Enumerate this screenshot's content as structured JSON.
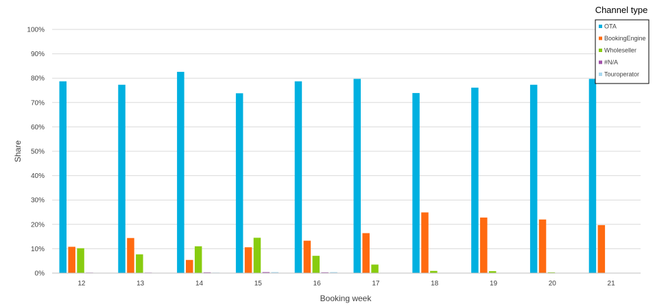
{
  "chart_data": {
    "type": "bar",
    "title": "",
    "xlabel": "Booking week",
    "ylabel": "Share",
    "ylim": [
      0,
      1
    ],
    "yticks": [
      "0%",
      "10%",
      "20%",
      "30%",
      "40%",
      "50%",
      "60%",
      "70%",
      "80%",
      "90%",
      "100%"
    ],
    "grid": true,
    "legend_position": "top-right",
    "legend_title": "Channel type",
    "categories": [
      "12",
      "13",
      "14",
      "15",
      "16",
      "17",
      "18",
      "19",
      "20",
      "21"
    ],
    "series": [
      {
        "name": "OTA",
        "color": "#00B0E0",
        "values": [
          0.787,
          0.773,
          0.826,
          0.738,
          0.787,
          0.797,
          0.739,
          0.761,
          0.773,
          0.797
        ]
      },
      {
        "name": "BookingEngine",
        "color": "#FF6A10",
        "values": [
          0.108,
          0.144,
          0.054,
          0.106,
          0.133,
          0.164,
          0.249,
          0.228,
          0.22,
          0.197
        ]
      },
      {
        "name": "Wholeseller",
        "color": "#88CC10",
        "values": [
          0.102,
          0.077,
          0.11,
          0.145,
          0.071,
          0.035,
          0.009,
          0.008,
          0.003,
          0.0
        ]
      },
      {
        "name": "#N/A",
        "color": "#A050A8",
        "values": [
          0.002,
          0.002,
          0.003,
          0.004,
          0.003,
          0.0,
          0.0,
          0.0,
          0.0,
          0.0
        ]
      },
      {
        "name": "Touroperator",
        "color": "#A8D8F0",
        "values": [
          0.001,
          0.0,
          0.002,
          0.004,
          0.004,
          0.0,
          0.0,
          0.0,
          0.0,
          0.001
        ]
      }
    ]
  }
}
